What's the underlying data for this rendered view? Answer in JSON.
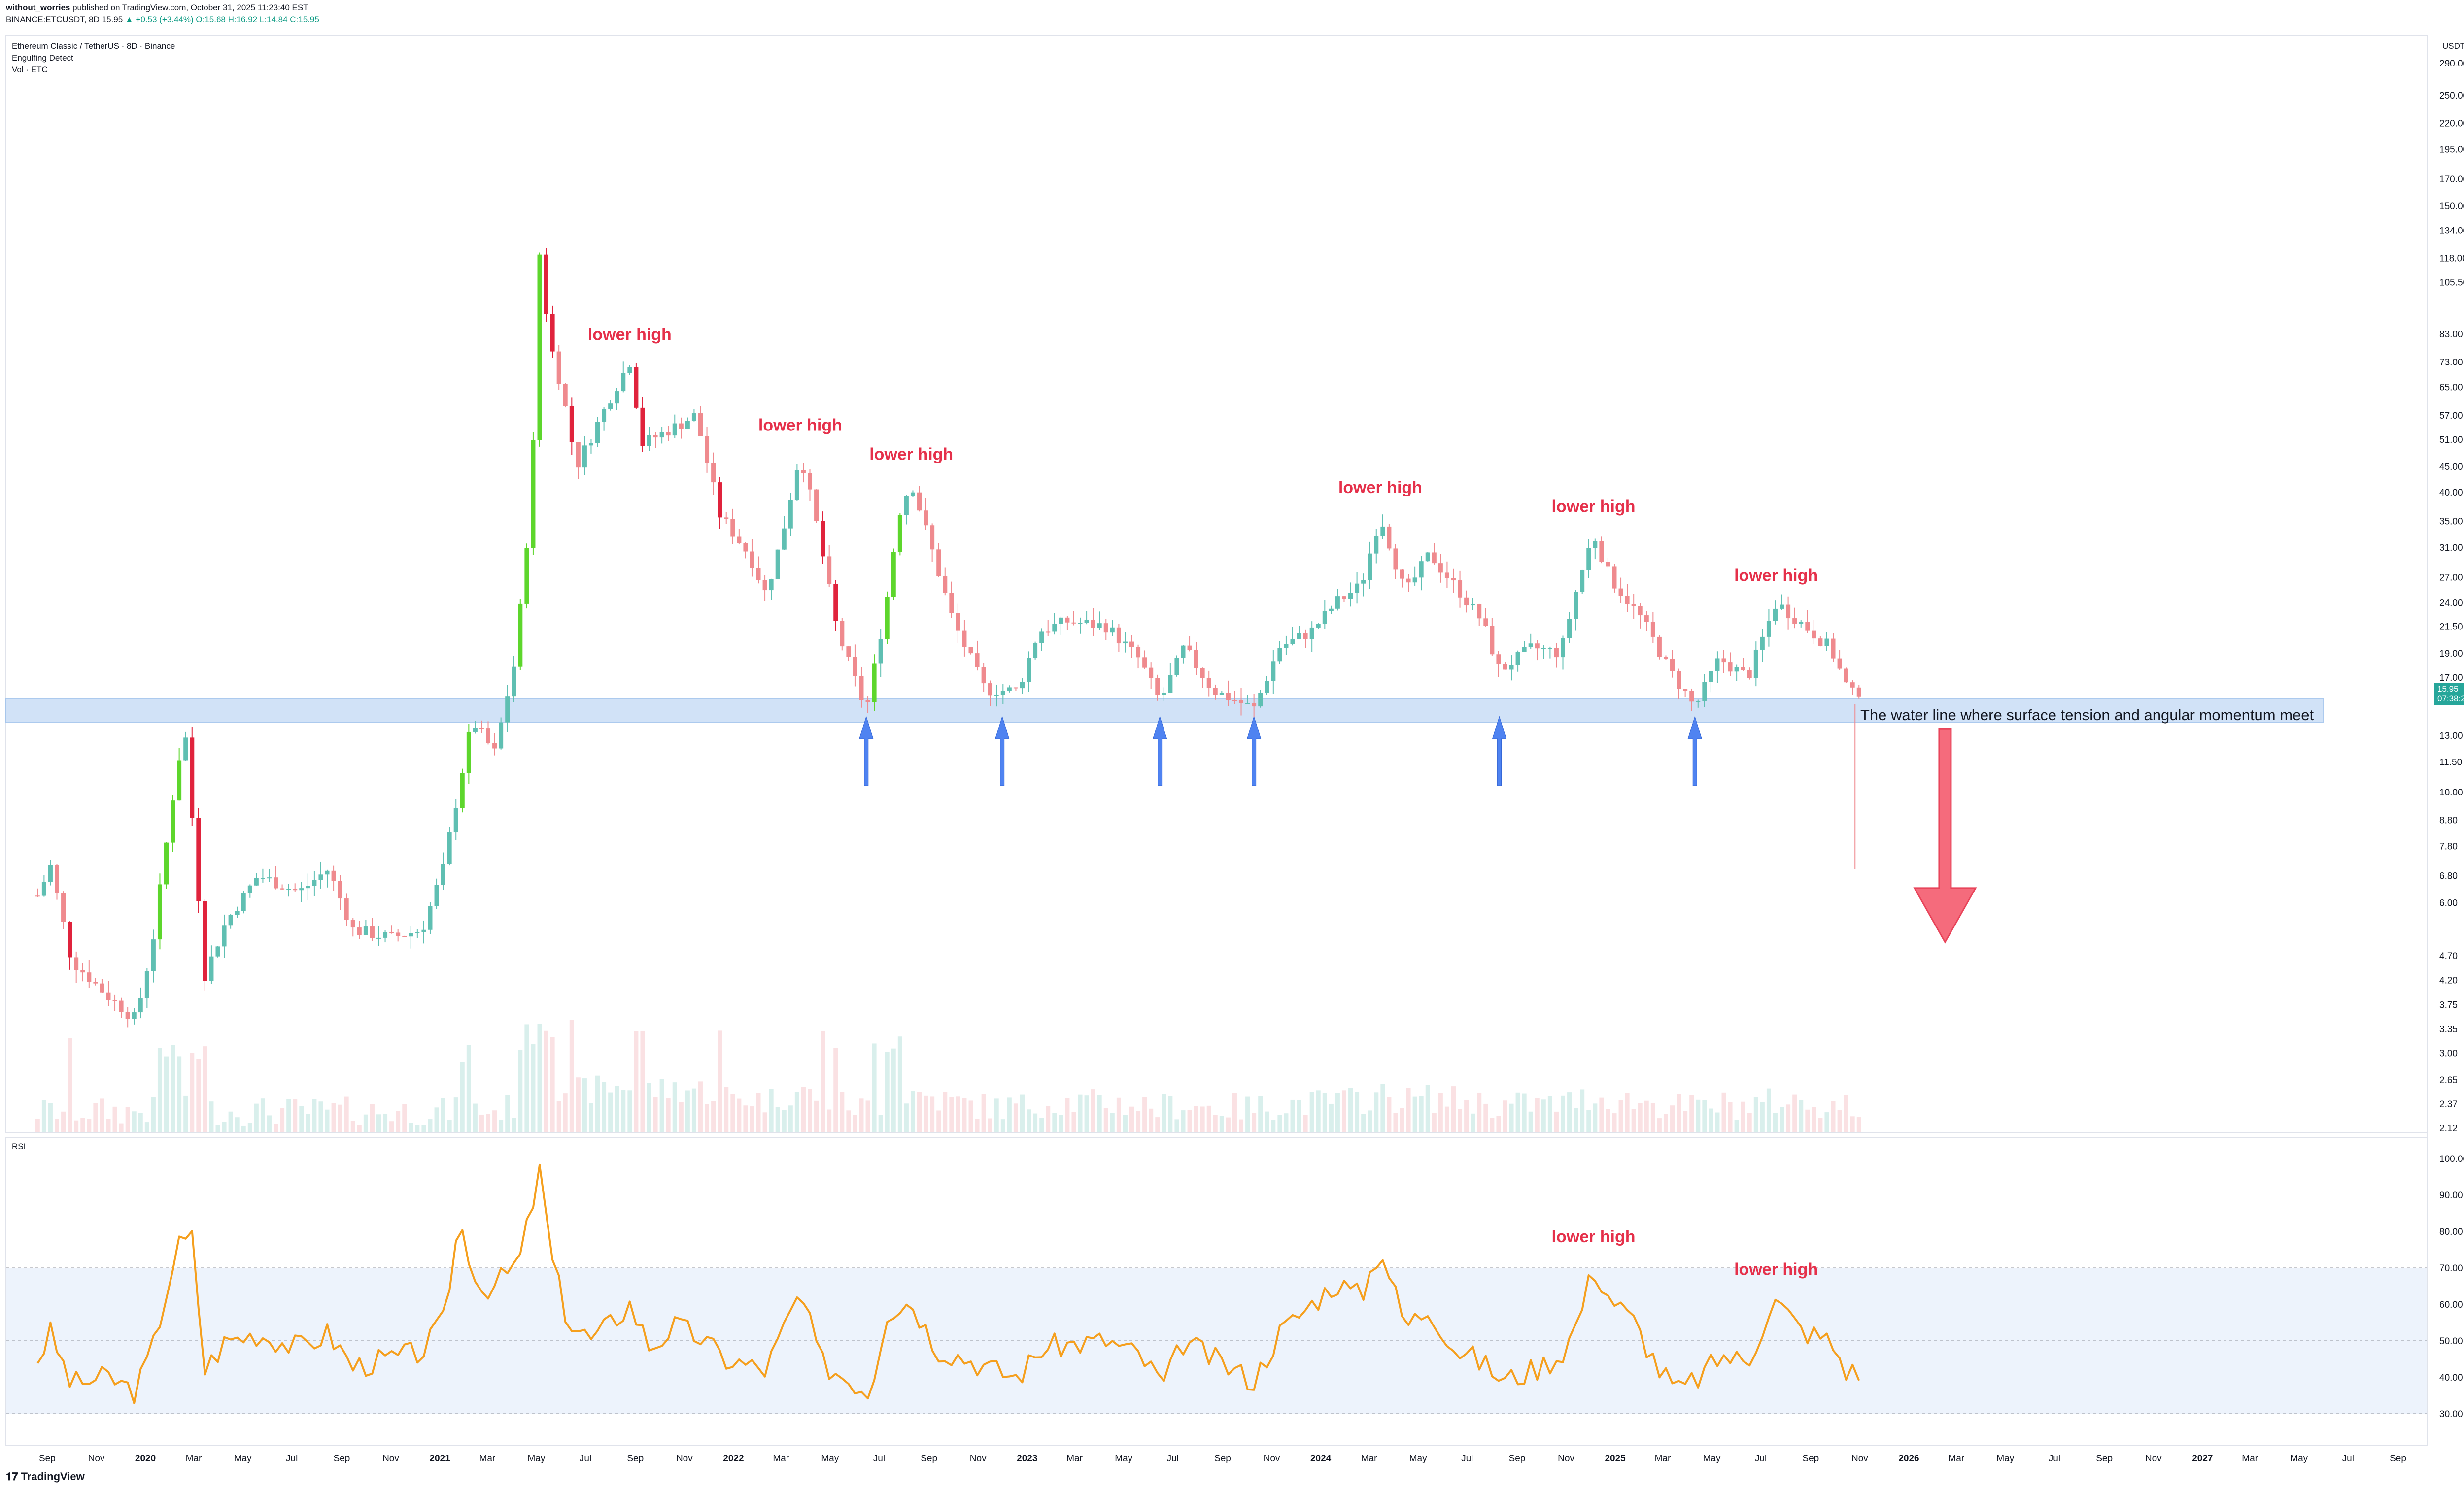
{
  "header": {
    "line1_user": "without_worries",
    "line1_rest": " published on TradingView.com, October 31, 2025 11:23:40 EST",
    "line2_symbol": "BINANCE:ETCUSDT, 8D",
    "line2_price": "15.95",
    "line2_change": "▲ +0.53 (+3.44%)",
    "line2_ohlc": "O:15.68 H:16.92 L:14.84 C:15.95"
  },
  "legend": {
    "title": "Ethereum Classic / TetherUS · 8D · Binance",
    "indicator1": "Engulfing Detect",
    "indicator2": "Vol · ETC",
    "rsi": "RSI"
  },
  "price_axis": {
    "currency": "USDT",
    "current_price": "15.95",
    "countdown": "07:38:21"
  },
  "annotations": {
    "lower_high": "lower high",
    "water_line": "The water line where surface tension and angular momentum meet"
  },
  "footer": {
    "brand": "TradingView"
  },
  "colors": {
    "up": "#5fbfb2",
    "down": "#ef8a8e",
    "engulf_up": "#5dd62c",
    "engulf_down": "#e0233c",
    "support_zone": "#c9ddf6",
    "arrow_blue": "#4f83f1",
    "arrow_red": "#f56b7c",
    "rsi_line": "#f59f1d",
    "rsi_band": "#edf3fc"
  },
  "chart_data": [
    {
      "type": "candlestick",
      "title": "Ethereum Classic / TetherUS · 8D · Binance",
      "y_scale": "log",
      "y_ticks": [
        2.12,
        2.37,
        2.65,
        3.0,
        3.35,
        3.75,
        4.2,
        4.7,
        6.0,
        6.8,
        7.8,
        8.8,
        10.0,
        11.5,
        13.0,
        17.0,
        19.0,
        21.5,
        24.0,
        27.0,
        31.0,
        35.0,
        40.0,
        45.0,
        51.0,
        57.0,
        65.0,
        73.0,
        83.0,
        105.5,
        118.0,
        134.0,
        150.0,
        170.0,
        195.0,
        220.0,
        250.0,
        290.0
      ],
      "x_ticks": [
        "Sep",
        "Nov",
        "2020",
        "Mar",
        "May",
        "Jul",
        "Sep",
        "Nov",
        "2021",
        "Mar",
        "May",
        "Jul",
        "Sep",
        "Nov",
        "2022",
        "Mar",
        "May",
        "Jul",
        "Sep",
        "Nov",
        "2023",
        "Mar",
        "May",
        "Jul",
        "Sep",
        "Nov",
        "2024",
        "Mar",
        "May",
        "Jul",
        "Sep",
        "Nov",
        "2025",
        "Mar",
        "May",
        "Jul",
        "Sep",
        "Nov",
        "2026",
        "Mar",
        "May",
        "Jul",
        "Sep",
        "Nov",
        "2027",
        "Mar",
        "May",
        "Jul",
        "Sep"
      ],
      "price_path": [
        [
          "2019-08-20",
          6.2
        ],
        [
          "2019-09-05",
          7.1
        ],
        [
          "2019-10-01",
          4.6
        ],
        [
          "2019-11-15",
          3.9
        ],
        [
          "2019-12-20",
          3.5
        ],
        [
          "2020-01-10",
          5.0
        ],
        [
          "2020-02-10",
          11.5
        ],
        [
          "2020-02-20",
          12.8
        ],
        [
          "2020-03-15",
          4.3
        ],
        [
          "2020-04-10",
          5.5
        ],
        [
          "2020-05-20",
          6.8
        ],
        [
          "2020-07-10",
          6.3
        ],
        [
          "2020-08-15",
          7.0
        ],
        [
          "2020-09-15",
          5.3
        ],
        [
          "2020-11-01",
          5.1
        ],
        [
          "2020-12-10",
          5.3
        ],
        [
          "2021-01-05",
          7.0
        ],
        [
          "2021-02-10",
          13.9
        ],
        [
          "2021-03-10",
          12.0
        ],
        [
          "2021-04-05",
          18.5
        ],
        [
          "2021-04-25",
          40.0
        ],
        [
          "2021-05-06",
          134.0
        ],
        [
          "2021-05-15",
          83.0
        ],
        [
          "2021-06-01",
          65.0
        ],
        [
          "2021-06-20",
          45.0
        ],
        [
          "2021-08-01",
          62.0
        ],
        [
          "2021-08-25",
          73.0
        ],
        [
          "2021-09-10",
          50.0
        ],
        [
          "2021-10-20",
          54.0
        ],
        [
          "2021-11-15",
          57.0
        ],
        [
          "2021-12-15",
          36.0
        ],
        [
          "2022-01-20",
          30.0
        ],
        [
          "2022-02-10",
          25.0
        ],
        [
          "2022-03-01",
          32.0
        ],
        [
          "2022-03-25",
          48.0
        ],
        [
          "2022-04-15",
          34.0
        ],
        [
          "2022-05-10",
          21.0
        ],
        [
          "2022-06-15",
          14.5
        ],
        [
          "2022-07-10",
          24.0
        ],
        [
          "2022-07-25",
          36.0
        ],
        [
          "2022-08-10",
          42.0
        ],
        [
          "2022-09-01",
          32.0
        ],
        [
          "2022-10-01",
          22.0
        ],
        [
          "2022-11-10",
          16.0
        ],
        [
          "2022-12-20",
          16.0
        ],
        [
          "2023-01-15",
          21.0
        ],
        [
          "2023-02-20",
          22.0
        ],
        [
          "2023-04-10",
          21.5
        ],
        [
          "2023-05-20",
          18.5
        ],
        [
          "2023-06-15",
          15.2
        ],
        [
          "2023-07-15",
          19.5
        ],
        [
          "2023-08-20",
          16.0
        ],
        [
          "2023-10-10",
          14.7
        ],
        [
          "2023-11-10",
          19.5
        ],
        [
          "2023-12-20",
          21.0
        ],
        [
          "2024-01-20",
          24.0
        ],
        [
          "2024-02-20",
          26.0
        ],
        [
          "2024-03-15",
          36.0
        ],
        [
          "2024-04-15",
          25.0
        ],
        [
          "2024-05-15",
          30.0
        ],
        [
          "2024-06-15",
          26.0
        ],
        [
          "2024-07-20",
          22.0
        ],
        [
          "2024-08-10",
          17.5
        ],
        [
          "2024-09-20",
          19.5
        ],
        [
          "2024-10-25",
          19.0
        ],
        [
          "2024-11-15",
          26.0
        ],
        [
          "2024-12-05",
          33.0
        ],
        [
          "2024-12-25",
          27.0
        ],
        [
          "2025-02-05",
          22.0
        ],
        [
          "2025-03-10",
          17.5
        ],
        [
          "2025-04-10",
          14.8
        ],
        [
          "2025-05-10",
          18.5
        ],
        [
          "2025-06-15",
          17.0
        ],
        [
          "2025-07-20",
          24.0
        ],
        [
          "2025-08-25",
          21.5
        ],
        [
          "2025-09-25",
          19.5
        ],
        [
          "2025-10-20",
          15.7
        ],
        [
          "2025-10-31",
          15.95
        ]
      ],
      "support_zone": [
        13.8,
        15.4
      ],
      "flash_wick_low": 7.0,
      "lower_high_labels": [
        "2021-08-25",
        "2022-03-25",
        "2022-08-10",
        "2024-03-15",
        "2024-12-05",
        "2025-07-20"
      ],
      "support_touch_arrows": [
        "2022-06-15",
        "2022-12-01",
        "2023-06-15",
        "2023-10-10",
        "2024-08-10",
        "2025-04-10"
      ],
      "projection": {
        "from": 14.0,
        "to": 5.0,
        "date": "2026-02-15",
        "direction": "down"
      }
    },
    {
      "type": "line",
      "title": "RSI",
      "ylim": [
        30,
        100
      ],
      "y_ticks": [
        30,
        40,
        50,
        60,
        70,
        80,
        90,
        100
      ],
      "band": [
        30,
        70
      ],
      "series": [
        {
          "name": "RSI",
          "points": [
            [
              "2019-08-20",
              45
            ],
            [
              "2019-09-05",
              52
            ],
            [
              "2019-10-01",
              38
            ],
            [
              "2019-11-15",
              40
            ],
            [
              "2019-12-20",
              36
            ],
            [
              "2020-01-10",
              48
            ],
            [
              "2020-02-10",
              76
            ],
            [
              "2020-02-28",
              78
            ],
            [
              "2020-03-15",
              42
            ],
            [
              "2020-04-10",
              50
            ],
            [
              "2020-05-20",
              52
            ],
            [
              "2020-07-10",
              48
            ],
            [
              "2020-08-15",
              52
            ],
            [
              "2020-09-15",
              43
            ],
            [
              "2020-11-01",
              45
            ],
            [
              "2020-12-10",
              47
            ],
            [
              "2021-01-05",
              55
            ],
            [
              "2021-01-25",
              83
            ],
            [
              "2021-02-20",
              64
            ],
            [
              "2021-03-15",
              66
            ],
            [
              "2021-04-10",
              72
            ],
            [
              "2021-05-06",
              97
            ],
            [
              "2021-05-20",
              72
            ],
            [
              "2021-06-10",
              55
            ],
            [
              "2021-07-10",
              50
            ],
            [
              "2021-08-25",
              60
            ],
            [
              "2021-09-20",
              48
            ],
            [
              "2021-10-20",
              54
            ],
            [
              "2021-11-20",
              51
            ],
            [
              "2021-12-20",
              45
            ],
            [
              "2022-02-10",
              42
            ],
            [
              "2022-03-25",
              63
            ],
            [
              "2022-04-20",
              44
            ],
            [
              "2022-05-20",
              40
            ],
            [
              "2022-06-20",
              36
            ],
            [
              "2022-07-10",
              58
            ],
            [
              "2022-08-10",
              61
            ],
            [
              "2022-09-10",
              48
            ],
            [
              "2022-10-20",
              45
            ],
            [
              "2022-11-20",
              42
            ],
            [
              "2022-12-20",
              40
            ],
            [
              "2023-01-20",
              48
            ],
            [
              "2023-02-20",
              49
            ],
            [
              "2023-04-10",
              50
            ],
            [
              "2023-05-20",
              46
            ],
            [
              "2023-06-20",
              38
            ],
            [
              "2023-07-15",
              50
            ],
            [
              "2023-08-20",
              45
            ],
            [
              "2023-10-10",
              39
            ],
            [
              "2023-11-10",
              52
            ],
            [
              "2023-12-20",
              60
            ],
            [
              "2024-01-20",
              66
            ],
            [
              "2024-02-20",
              62
            ],
            [
              "2024-03-15",
              76
            ],
            [
              "2024-04-15",
              54
            ],
            [
              "2024-05-15",
              59
            ],
            [
              "2024-06-15",
              48
            ],
            [
              "2024-07-20",
              44
            ],
            [
              "2024-08-15",
              39
            ],
            [
              "2024-09-20",
              42
            ],
            [
              "2024-10-25",
              46
            ],
            [
              "2024-11-15",
              55
            ],
            [
              "2024-12-05",
              70
            ],
            [
              "2024-12-25",
              62
            ],
            [
              "2025-01-25",
              55
            ],
            [
              "2025-02-25",
              42
            ],
            [
              "2025-03-20",
              36
            ],
            [
              "2025-04-15",
              40
            ],
            [
              "2025-05-15",
              46
            ],
            [
              "2025-06-15",
              44
            ],
            [
              "2025-07-10",
              58
            ],
            [
              "2025-07-20",
              61
            ],
            [
              "2025-08-20",
              53
            ],
            [
              "2025-09-25",
              50
            ],
            [
              "2025-10-15",
              42
            ],
            [
              "2025-10-31",
              41
            ]
          ]
        }
      ],
      "annotations": [
        {
          "date": "2024-12-05",
          "text": "lower high"
        },
        {
          "date": "2025-07-20",
          "text": "lower high"
        }
      ]
    }
  ]
}
